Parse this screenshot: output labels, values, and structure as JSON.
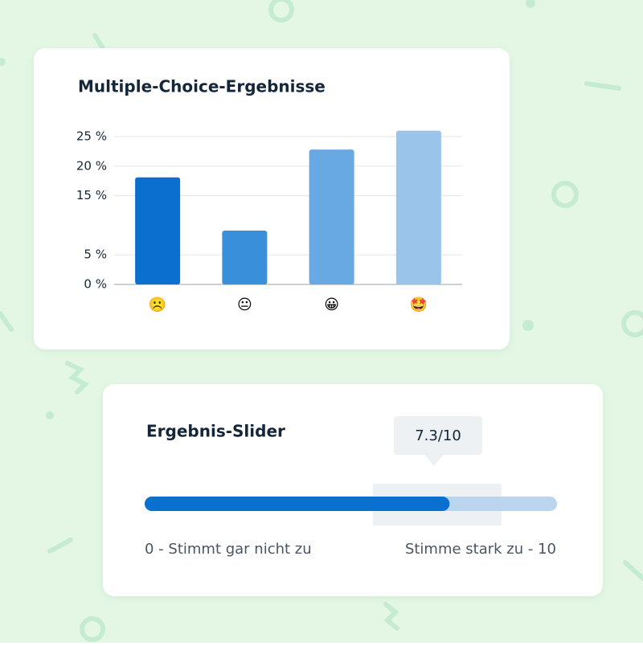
{
  "chart_data": {
    "type": "bar",
    "title": "Multiple-Choice-Ergebnisse",
    "categories": [
      "☹️",
      "😐",
      "😀",
      "🤩"
    ],
    "values": [
      18.1,
      9.1,
      22.8,
      26
    ],
    "colors": [
      "#0a6fcf",
      "#3a8fdb",
      "#68a8e3",
      "#9ac4ea"
    ],
    "ylim": [
      0,
      26
    ],
    "yticks": [
      {
        "value": 0,
        "label": "0 %"
      },
      {
        "value": 5,
        "label": "5 %"
      },
      {
        "value": 15,
        "label": "15 %"
      },
      {
        "value": 20,
        "label": "20 %"
      },
      {
        "value": 25,
        "label": "25 %"
      }
    ],
    "grid": true
  },
  "slider": {
    "title": "Ergebnis-Slider",
    "value": 7.3,
    "max": 10,
    "value_label": "7.3/10",
    "min_label": "0 - Stimmt gar nicht zu",
    "max_label": "Stimme stark zu - 10"
  }
}
